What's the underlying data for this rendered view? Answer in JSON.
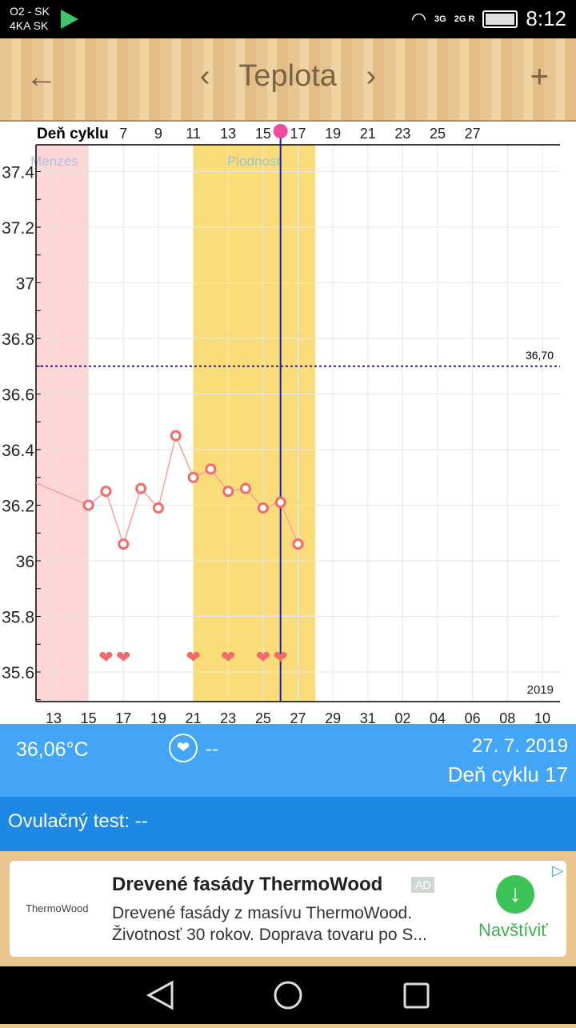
{
  "status": {
    "carrier1": "O2 - SK",
    "carrier2": "4KA SK",
    "net1": "3G",
    "net2": "2G R",
    "time": "8:12"
  },
  "header": {
    "title": "Teplota",
    "back_icon": "arrow-left",
    "prev_icon": "chevron-left",
    "next_icon": "chevron-right",
    "add_icon": "plus"
  },
  "chart_data": {
    "type": "line",
    "top_axis_label": "Deň cyklu",
    "cycle_day_ticks": [
      "7",
      "9",
      "11",
      "13",
      "15",
      "17",
      "19",
      "21",
      "23",
      "25",
      "27"
    ],
    "date_ticks": [
      "13",
      "15",
      "17",
      "19",
      "21",
      "23",
      "25",
      "27",
      "29",
      "31",
      "02",
      "04",
      "06",
      "08",
      "10"
    ],
    "y_ticks": [
      "37.4",
      "37.2",
      "37",
      "36.8",
      "36.6",
      "36.4",
      "36.2",
      "36",
      "35.8",
      "35.6"
    ],
    "ylim": [
      35.5,
      37.5
    ],
    "year": "2019",
    "reference_line": {
      "value": 36.7,
      "label": "36,70"
    },
    "bands": [
      {
        "label": "Menzes",
        "from_index": -1,
        "to_index": 2,
        "color": "#ffd6d6"
      },
      {
        "label": "Plodnosť",
        "from_index": 8,
        "to_index": 15,
        "color": "#fadc78"
      }
    ],
    "series": [
      {
        "name": "Teplota",
        "x_index": [
          2,
          3,
          4,
          5,
          6,
          7,
          8,
          9,
          10,
          11,
          12,
          13,
          14
        ],
        "values": [
          36.2,
          36.25,
          36.06,
          36.26,
          36.19,
          36.45,
          36.3,
          36.33,
          36.25,
          36.26,
          36.19,
          36.21,
          36.06
        ],
        "lead_in_value": 36.28,
        "color": "#f26b6b"
      }
    ],
    "hearts_index": [
      3,
      4,
      8,
      10,
      12,
      13
    ],
    "cursor_index": 13
  },
  "info": {
    "temperature": "36,06°C",
    "heart_value": "--",
    "date": "27. 7. 2019",
    "cycle_day": "Deň cyklu 17"
  },
  "ovulation": {
    "label": "Ovulačný test: --"
  },
  "ad": {
    "logo": "ThermoWood",
    "title": "Drevené fasády ThermoWood",
    "badge": "AD",
    "line1": "Drevené fasády z masívu ThermoWood.",
    "line2": "Životnosť 30 rokov. Doprava tovaru po S...",
    "cta": "Navštíviť"
  }
}
